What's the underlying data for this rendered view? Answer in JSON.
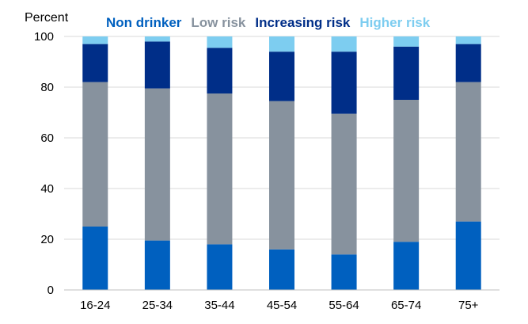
{
  "chart_data": {
    "type": "bar",
    "stacked": true,
    "title": "",
    "xlabel": "",
    "ylabel": "Percent",
    "ylim": [
      0,
      100
    ],
    "yticks": [
      0,
      20,
      40,
      60,
      80,
      100
    ],
    "grid": true,
    "legend_position": "top",
    "categories": [
      "16-24",
      "25-34",
      "35-44",
      "45-54",
      "55-64",
      "65-74",
      "75+"
    ],
    "series": [
      {
        "name": "Non drinker",
        "color": "#0060BF",
        "values": [
          25,
          19.5,
          18,
          16,
          14,
          19,
          27
        ]
      },
      {
        "name": "Low risk",
        "color": "#87929E",
        "values": [
          57,
          60,
          59.5,
          58.5,
          55.5,
          56,
          55
        ]
      },
      {
        "name": "Increasing risk",
        "color": "#002E88",
        "values": [
          15,
          18.5,
          18,
          19.5,
          24.5,
          21,
          15
        ]
      },
      {
        "name": "Higher risk",
        "color": "#7DCDF0",
        "values": [
          3,
          2,
          4.5,
          6,
          6,
          4,
          3
        ]
      }
    ]
  }
}
